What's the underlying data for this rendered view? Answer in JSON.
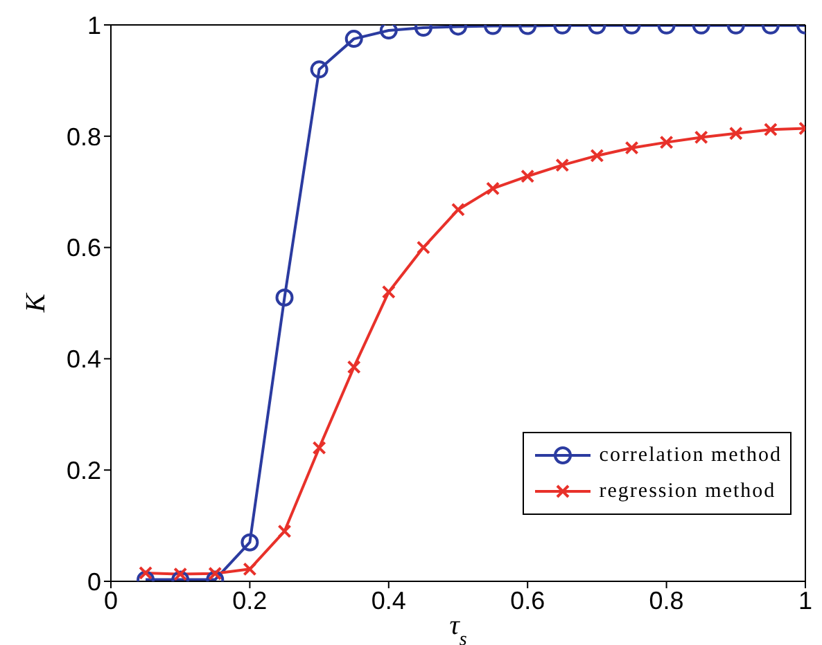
{
  "chart_data": {
    "type": "line",
    "xlabel": "τ$_{s}$",
    "ylabel": "K",
    "x": [
      0.05,
      0.1,
      0.15,
      0.2,
      0.25,
      0.3,
      0.35,
      0.4,
      0.45,
      0.5,
      0.55,
      0.6,
      0.65,
      0.7,
      0.75,
      0.8,
      0.85,
      0.9,
      0.95,
      1.0
    ],
    "series": [
      {
        "name": "correlation method",
        "color": "#2b3ba0",
        "marker": "circle",
        "values": [
          0.003,
          0.003,
          0.003,
          0.07,
          0.51,
          0.92,
          0.975,
          0.99,
          0.995,
          0.997,
          0.998,
          0.998,
          0.999,
          0.999,
          0.999,
          0.999,
          0.999,
          0.999,
          0.999,
          0.999
        ]
      },
      {
        "name": "regression method",
        "color": "#e8312a",
        "marker": "cross",
        "values": [
          0.015,
          0.013,
          0.014,
          0.022,
          0.09,
          0.24,
          0.385,
          0.52,
          0.6,
          0.668,
          0.706,
          0.728,
          0.748,
          0.765,
          0.779,
          0.789,
          0.798,
          0.805,
          0.812,
          0.814
        ]
      }
    ],
    "xlim": [
      0,
      1
    ],
    "xticks": [
      0,
      0.2,
      0.4,
      0.6,
      0.8,
      1
    ],
    "ylim": [
      0,
      1
    ],
    "yticks": [
      0,
      0.2,
      0.4,
      0.6,
      0.8,
      1
    ],
    "grid": false,
    "legend": "bottom right",
    "line_style": "solid"
  }
}
